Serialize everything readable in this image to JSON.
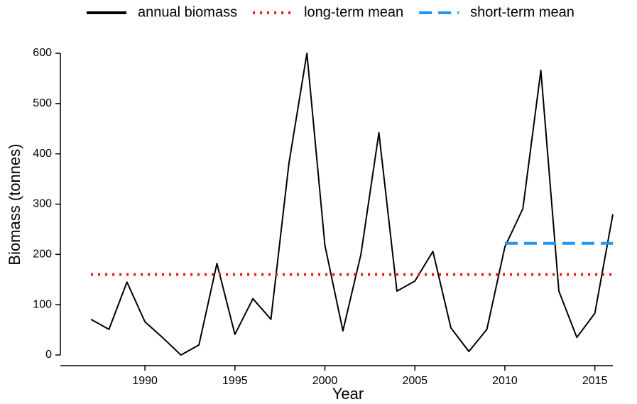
{
  "chart_data": {
    "type": "line",
    "x_label": "Year",
    "y_label": "Biomass (tonnes)",
    "xlim": [
      1985.3,
      2016
    ],
    "xticks": [
      1990,
      1995,
      2000,
      2005,
      2010,
      2015
    ],
    "ylim": [
      0,
      600
    ],
    "yticks": [
      0,
      100,
      200,
      300,
      400,
      500,
      600
    ],
    "legend": "top",
    "series": [
      {
        "name": "annual biomass",
        "color": "#000000",
        "style": "solid",
        "x": [
          1987,
          1988,
          1989,
          1990,
          1991,
          1992,
          1993,
          1994,
          1995,
          1996,
          1997,
          1998,
          1999,
          2000,
          2001,
          2002,
          2003,
          2004,
          2005,
          2006,
          2007,
          2008,
          2009,
          2010,
          2011,
          2012,
          2013,
          2014,
          2015,
          2016
        ],
        "values": [
          71,
          51,
          145,
          66,
          34,
          0,
          20,
          182,
          41,
          112,
          71,
          381,
          600,
          218,
          48,
          200,
          442,
          127,
          147,
          206,
          54,
          7,
          51,
          215,
          291,
          566,
          127,
          35,
          83,
          280
        ]
      },
      {
        "name": "long-term mean",
        "color": "#e31a1c",
        "style": "dotted",
        "x": [
          1987,
          2016
        ],
        "values": [
          160,
          160
        ]
      },
      {
        "name": "short-term mean",
        "color": "#2196f3",
        "style": "dashed",
        "x": [
          2010,
          2016
        ],
        "values": [
          222,
          222
        ]
      }
    ]
  }
}
